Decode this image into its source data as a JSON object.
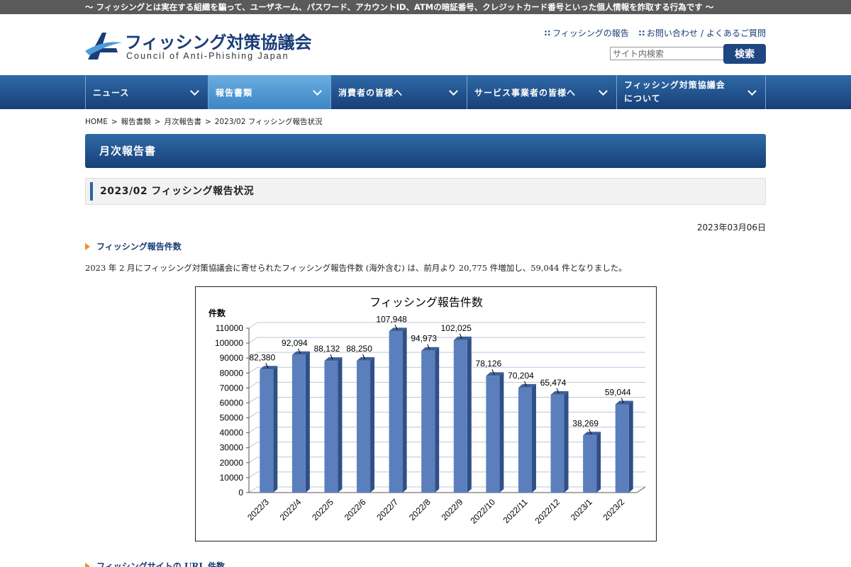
{
  "topbar": {
    "text": "〜 フィッシングとは実在する組織を騙って、ユーザネーム、パスワード、アカウントID、ATMの暗証番号、クレジットカード番号といった個人情報を詐取する行為です 〜"
  },
  "header": {
    "logo_ja": "フィッシング対策協議会",
    "logo_en": "Council of Anti-Phishing Japan",
    "link_report": "フィッシングの報告",
    "link_contact": "お問い合わせ",
    "link_faq": "よくあるご質問",
    "search_placeholder": "サイト内検索",
    "search_button": "検索"
  },
  "nav": {
    "items": [
      {
        "label": "ニュース"
      },
      {
        "label": "報告書類"
      },
      {
        "label": "消費者の皆様へ"
      },
      {
        "label": "サービス事業者の皆様へ"
      },
      {
        "label_line1": "フィッシング対策協議会",
        "label_line2": "について"
      }
    ]
  },
  "breadcrumb": [
    "HOME",
    "報告書類",
    "月次報告書",
    "2023/02 フィッシング報告状況"
  ],
  "page": {
    "title": "月次報告書",
    "subtitle": "2023/02 フィッシング報告状況",
    "date": "2023年03月06日",
    "section1_heading": "フィッシング報告件数",
    "section1_text": "2023 年 2 月にフィッシング対策協議会に寄せられたフィッシング報告件数 (海外含む) は、前月より 20,775 件増加し、59,044 件となりました。",
    "section2_heading": "フィッシングサイトの URL 件数"
  },
  "colors": {
    "nav": "#1f4f8f",
    "accent": "#e8912c",
    "bar": "#5b7fbd"
  },
  "chart_data": {
    "type": "bar",
    "title": "フィッシング報告件数",
    "ylabel": "件数",
    "xlabel": "",
    "categories": [
      "2022/3",
      "2022/4",
      "2022/5",
      "2022/6",
      "2022/7",
      "2022/8",
      "2022/9",
      "2022/10",
      "2022/11",
      "2022/12",
      "2023/1",
      "2023/2"
    ],
    "values": [
      82380,
      92094,
      88132,
      88250,
      107948,
      94973,
      102025,
      78126,
      70204,
      65474,
      38269,
      59044
    ],
    "value_labels": [
      "82,380",
      "92,094",
      "88,132",
      "88,250",
      "107,948",
      "94,973",
      "102,025",
      "78,126",
      "70,204",
      "65,474",
      "38,269",
      "59,044"
    ],
    "ylim": [
      0,
      110000
    ],
    "yticks": [
      0,
      10000,
      20000,
      30000,
      40000,
      50000,
      60000,
      70000,
      80000,
      90000,
      100000,
      110000
    ],
    "grid": true,
    "legend": "none"
  }
}
